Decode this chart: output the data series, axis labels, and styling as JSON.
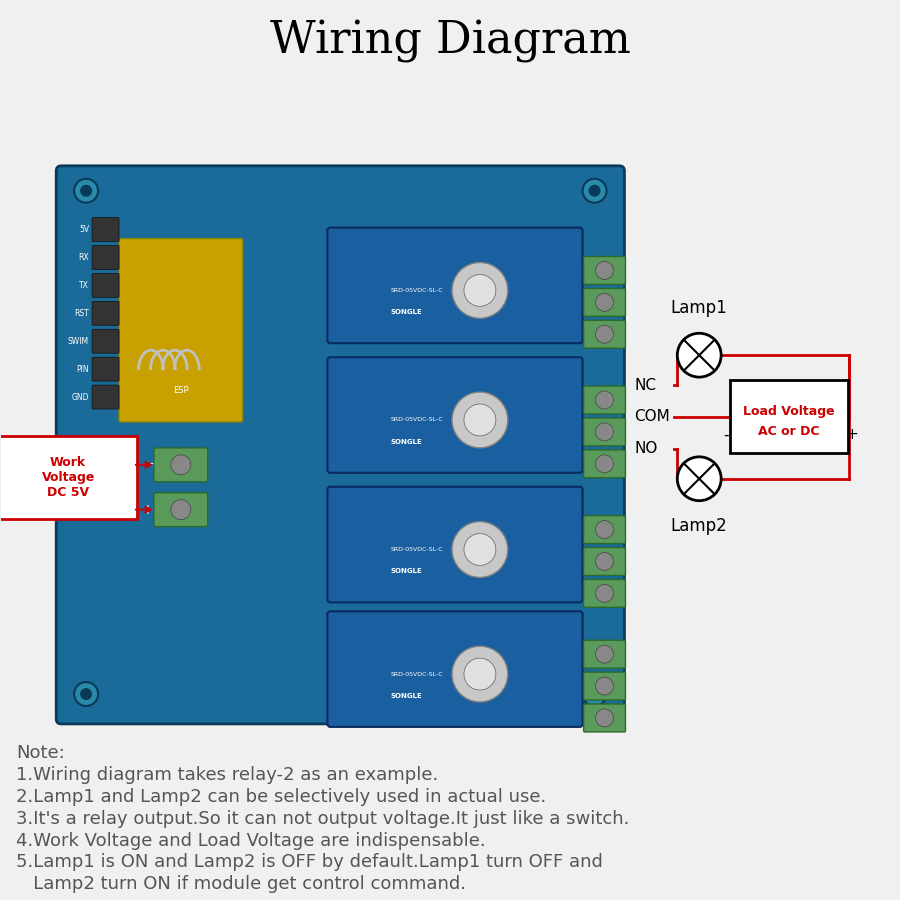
{
  "title": "Wiring Diagram",
  "title_fontsize": 32,
  "bg_color": "#f0f0f0",
  "note_lines": [
    "Note:",
    "1.Wiring diagram takes relay-2 as an example.",
    "2.Lamp1 and Lamp2 can be selectively used in actual use.",
    "3.It's a relay output.So it can not output voltage.It just like a switch.",
    "4.Work Voltage and Load Voltage are indispensable.",
    "5.Lamp1 is ON and Lamp2 is OFF by default.Lamp1 turn OFF and",
    "   Lamp2 turn ON if module get control command."
  ],
  "note_fontsize": 13,
  "work_voltage_label": "Work\nVoltage\nDC 5V",
  "work_voltage_color": "#cc0000",
  "nc_label": "NC",
  "com_label": "COM",
  "no_label": "NO",
  "lamp1_label": "Lamp1",
  "lamp2_label": "Lamp2",
  "load_voltage_label": "Load Voltage\nAC or DC",
  "load_voltage_color": "#cc0000",
  "circuit_color": "#cc0000",
  "relay_terminal_color": "#5a9a5a",
  "board_color": "#1a6a9a",
  "lamp_symbol_color": "#000000"
}
